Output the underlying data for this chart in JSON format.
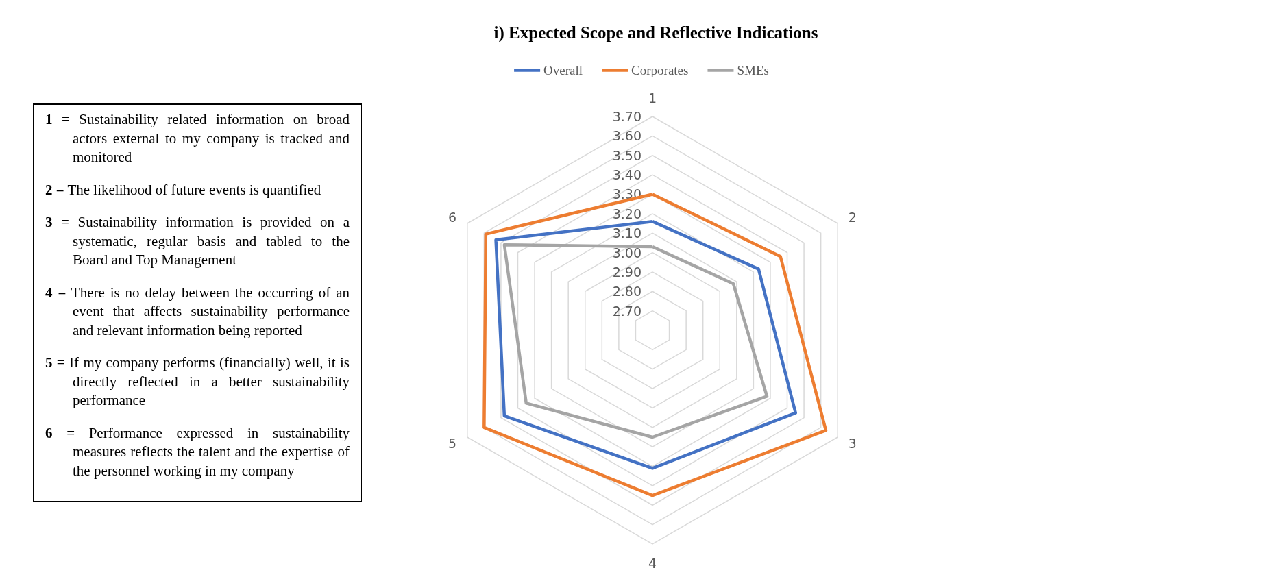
{
  "chart_data": {
    "type": "radar",
    "title": "i) Expected Scope and Reflective Indications",
    "categories": [
      "1",
      "2",
      "3",
      "4",
      "5",
      "6"
    ],
    "series": [
      {
        "name": "Overall",
        "color": "#4472c4",
        "values": [
          3.16,
          3.23,
          3.45,
          3.31,
          3.48,
          3.53
        ]
      },
      {
        "name": "Corporates",
        "color": "#ed7d31",
        "values": [
          3.3,
          3.36,
          3.63,
          3.45,
          3.6,
          3.59
        ]
      },
      {
        "name": "SMEs",
        "color": "#a5a5a5",
        "values": [
          3.03,
          3.08,
          3.28,
          3.15,
          3.35,
          3.48
        ]
      }
    ],
    "ylim": [
      2.6,
      3.7
    ],
    "yticks": [
      {
        "value": 2.7,
        "label": "2.70"
      },
      {
        "value": 2.8,
        "label": "2.80"
      },
      {
        "value": 2.9,
        "label": "2.90"
      },
      {
        "value": 3.0,
        "label": "3.00"
      },
      {
        "value": 3.1,
        "label": "3.10"
      },
      {
        "value": 3.2,
        "label": "3.20"
      },
      {
        "value": 3.3,
        "label": "3.30"
      },
      {
        "value": 3.4,
        "label": "3.40"
      },
      {
        "value": 3.5,
        "label": "3.50"
      },
      {
        "value": 3.6,
        "label": "3.60"
      },
      {
        "value": 3.7,
        "label": "3.70"
      }
    ],
    "grid": true,
    "legend": "top",
    "marker": "none",
    "line_style": "solid",
    "annotations": [
      "1 = Sustainability related information on broad actors external to my company is tracked and monitored",
      "2 = The likelihood of future events is quantified",
      "3 = Sustainability information is provided on a systematic, regular basis and tabled to the Board and Top Management",
      "4 = There is no delay between the occurring of an event that affects sustainability performance and relevant information being reported",
      "5 = If my company performs (financially) well, it is directly reflected in a better sustainability performance",
      "6 = Performance expressed in sustainability measures reflects the talent and the expertise of the personnel working in my company"
    ]
  }
}
